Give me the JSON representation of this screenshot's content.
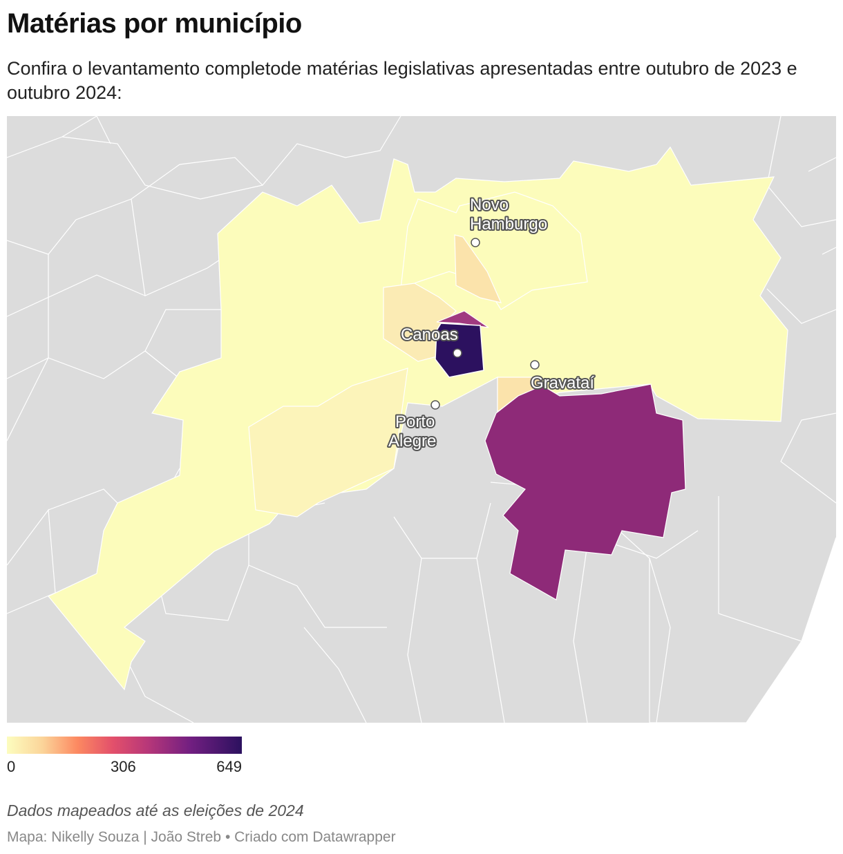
{
  "title": "Matérias por município",
  "subtitle": "Confira o levantamento completode matérias legislativas apresentadas entre outubro de 2023 e outubro 2024:",
  "legend": {
    "min_label": "0",
    "mid_label": "306",
    "max_label": "649",
    "min_value": 0,
    "mid_value": 306,
    "max_value": 649,
    "colors": [
      "#fcfdbf",
      "#fbd59a",
      "#fc8961",
      "#e3506b",
      "#b73779",
      "#721f81",
      "#2c115f"
    ]
  },
  "cities": {
    "novo_hamburgo_line1": "Novo",
    "novo_hamburgo_line2": "Hamburgo",
    "canoas": "Canoas",
    "gravatai": "Gravataí",
    "porto_alegre_line1": "Porto",
    "porto_alegre_line2": "Alegre"
  },
  "note": "Dados mapeados até as eleições de 2024",
  "credit": "Mapa: Nikelly Souza | João Streb • Criado com Datawrapper",
  "colors": {
    "background_region": "#dcdcdc",
    "low": "#fcfcbb",
    "low_mid": "#fbe7b0",
    "mid_high": "#8e2a78",
    "high": "#2c115f"
  }
}
